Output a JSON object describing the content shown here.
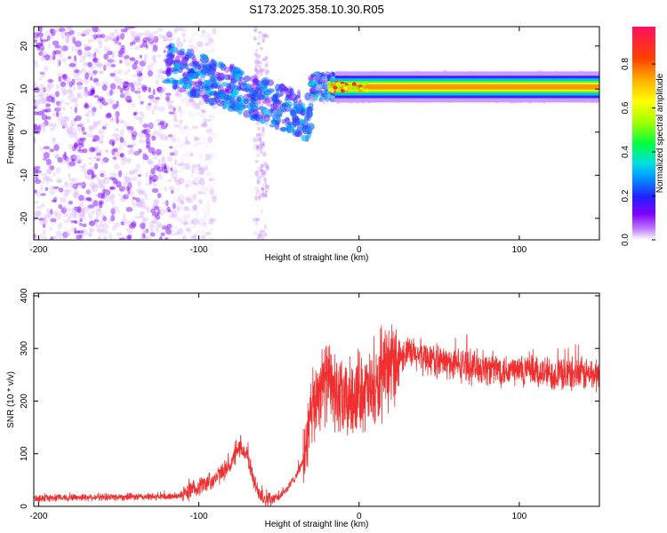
{
  "title": "S173.2025.358.10.30.R05",
  "chart_data": [
    {
      "type": "heatmap",
      "xlabel": "Height of straight line (km)",
      "ylabel": "Frequency (Hz)",
      "xlim": [
        -203,
        150
      ],
      "ylim": [
        -25,
        24.5
      ],
      "xticks": [
        -200,
        -100,
        0,
        100
      ],
      "yticks": [
        -20,
        -10,
        0,
        10,
        20
      ],
      "colorbar": {
        "label": "Normalized spectral amplitude",
        "range": [
          0,
          0.97
        ],
        "ticks": [
          0.0,
          0.2,
          0.4,
          0.6,
          0.8
        ],
        "tick_labels": [
          "0.0",
          "0.2",
          "0.4",
          "0.6",
          "0.8"
        ]
      },
      "features": [
        {
          "x_range": [
            -203,
            -100
          ],
          "freq_range": [
            -25,
            24.5
          ],
          "amplitude": 0.1,
          "description_value": "broadband noise"
        },
        {
          "x_range": [
            -120,
            -30
          ],
          "freq_start": 16,
          "freq_end": 3,
          "amplitude": 0.3
        },
        {
          "x_range": [
            -30,
            150
          ],
          "freq": 10.5,
          "amplitude": 0.9
        }
      ]
    },
    {
      "type": "line",
      "xlabel": "Height of straight line (km)",
      "ylabel": "SNR (10 * v/v)",
      "xlim": [
        -203,
        150
      ],
      "ylim": [
        0,
        405
      ],
      "xticks": [
        -200,
        -100,
        0,
        100
      ],
      "yticks": [
        0,
        100,
        200,
        300,
        400
      ],
      "color": "#f03030",
      "series": [
        {
          "x": [
            -203,
            -180,
            -150,
            -120,
            -110,
            -100,
            -90,
            -80,
            -75,
            -70,
            -65,
            -60,
            -55,
            -50,
            -45,
            -40,
            -35,
            -30,
            -25,
            -20,
            -15,
            -10,
            -5,
            0,
            5,
            10,
            15,
            20,
            25,
            30,
            40,
            50,
            60,
            80,
            100,
            120,
            150
          ],
          "values": [
            15,
            17,
            18,
            18,
            22,
            38,
            52,
            80,
            110,
            100,
            40,
            18,
            12,
            18,
            32,
            55,
            85,
            165,
            225,
            240,
            215,
            195,
            205,
            225,
            215,
            215,
            240,
            270,
            285,
            290,
            285,
            275,
            270,
            262,
            258,
            252,
            250
          ]
        }
      ]
    }
  ]
}
